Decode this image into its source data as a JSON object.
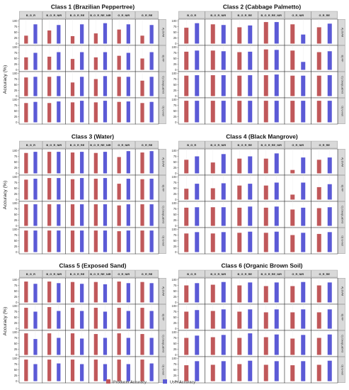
{
  "legend": [
    {
      "label": "Producer Accuracy",
      "color": "#c0585a"
    },
    {
      "label": "User Accuracy",
      "color": "#5b5ad6"
    }
  ],
  "chart_data": [
    {
      "type": "bar",
      "title": "Class 1 (Brazilian Peppertree)",
      "ylabel": "Accuracy (%)",
      "ylim": [
        0,
        100
      ],
      "yticks": [
        "0",
        "25",
        "50",
        "75",
        "100"
      ],
      "columns": [
        "B_G_R",
        "B_G_R_NIR",
        "B_G_R_RE",
        "B_G_R_RE_NIR",
        "G_R_NIR",
        "G_R_RE"
      ],
      "rows": [
        "A) SVM",
        "B) RF",
        "C) DeepLabV3",
        "D) U-net"
      ],
      "series": [
        {
          "name": "Producer Accuracy",
          "values": [
            [
              35,
              58,
              33,
              45,
              62,
              35
            ],
            [
              55,
              58,
              48,
              55,
              62,
              50
            ],
            [
              82,
              85,
              60,
              75,
              85,
              68
            ],
            [
              85,
              85,
              88,
              88,
              90,
              85
            ]
          ]
        },
        {
          "name": "User Accuracy",
          "values": [
            [
              85,
              82,
              85,
              90,
              85,
              82
            ],
            [
              75,
              78,
              78,
              78,
              75,
              78
            ],
            [
              85,
              88,
              85,
              88,
              85,
              85
            ],
            [
              90,
              92,
              95,
              95,
              92,
              90
            ]
          ]
        }
      ]
    },
    {
      "type": "bar",
      "title": "Class 2 (Cabbage Palmetto)",
      "ylabel": "Accuracy (%)",
      "ylim": [
        0,
        100
      ],
      "yticks": [
        "0",
        "25",
        "50",
        "75",
        "100"
      ],
      "columns": [
        "B_G_R",
        "B_G_R_NIR",
        "B_G_R_RE",
        "B_G_R_RE_NIR",
        "G_R_NIR",
        "G_R_RE"
      ],
      "rows": [
        "A) SVM",
        "B) RF",
        "C) DeepLabV3",
        "D) U-net"
      ],
      "series": [
        {
          "name": "Producer Accuracy",
          "values": [
            [
              70,
              85,
              72,
              95,
              85,
              72
            ],
            [
              80,
              85,
              78,
              90,
              85,
              78
            ],
            [
              90,
              92,
              90,
              92,
              90,
              90
            ],
            [
              95,
              95,
              95,
              95,
              95,
              95
            ]
          ]
        },
        {
          "name": "User Accuracy",
          "values": [
            [
              90,
              82,
              80,
              95,
              40,
              88
            ],
            [
              85,
              82,
              80,
              88,
              35,
              82
            ],
            [
              92,
              92,
              92,
              95,
              90,
              92
            ],
            [
              95,
              95,
              95,
              95,
              95,
              95
            ]
          ]
        }
      ]
    },
    {
      "type": "bar",
      "title": "Class 3 (Water)",
      "ylabel": "Accuracy (%)",
      "ylim": [
        0,
        100
      ],
      "yticks": [
        "0",
        "25",
        "50",
        "75",
        "100"
      ],
      "columns": [
        "B_G_R",
        "B_G_R_NIR",
        "B_G_R_RE",
        "B_G_R_RE_NIR",
        "G_R_NIR",
        "G_R_RE"
      ],
      "rows": [
        "A) SVM",
        "B) RF",
        "C) DeepLabV3",
        "D) U-net"
      ],
      "series": [
        {
          "name": "Producer Accuracy",
          "values": [
            [
              90,
              95,
              92,
              90,
              72,
              92
            ],
            [
              88,
              95,
              90,
              92,
              70,
              90
            ],
            [
              95,
              95,
              95,
              95,
              90,
              95
            ],
            [
              95,
              95,
              95,
              95,
              92,
              95
            ]
          ]
        },
        {
          "name": "User Accuracy",
          "values": [
            [
              95,
              95,
              95,
              95,
              98,
              98
            ],
            [
              92,
              95,
              95,
              95,
              92,
              92
            ],
            [
              95,
              95,
              95,
              95,
              95,
              95
            ],
            [
              95,
              95,
              95,
              95,
              95,
              95
            ]
          ]
        }
      ]
    },
    {
      "type": "bar",
      "title": "Class 4 (Black Mangrove)",
      "ylabel": "Accuracy (%)",
      "ylim": [
        0,
        100
      ],
      "yticks": [
        "0",
        "25",
        "50",
        "75",
        "100"
      ],
      "columns": [
        "B_G_R",
        "B_G_R_NIR",
        "B_G_R_RE",
        "B_G_R_RE_NIR",
        "G_R_NIR",
        "G_R_RE"
      ],
      "rows": [
        "A) SVM",
        "B) RF",
        "C) DeepLabV3",
        "D) U-net"
      ],
      "series": [
        {
          "name": "Producer Accuracy",
          "values": [
            [
              60,
              48,
              65,
              65,
              15,
              60
            ],
            [
              48,
              50,
              62,
              62,
              22,
              55
            ],
            [
              80,
              82,
              80,
              80,
              72,
              78
            ],
            [
              82,
              82,
              85,
              85,
              75,
              80
            ]
          ]
        },
        {
          "name": "User Accuracy",
          "values": [
            [
              75,
              85,
              75,
              88,
              70,
              70
            ],
            [
              70,
              72,
              70,
              75,
              75,
              68
            ],
            [
              82,
              82,
              85,
              85,
              80,
              82
            ],
            [
              88,
              88,
              90,
              90,
              85,
              88
            ]
          ]
        }
      ]
    },
    {
      "type": "bar",
      "title": "Class 5 (Exposed Sand)",
      "ylabel": "Accuracy (%)",
      "ylim": [
        0,
        100
      ],
      "yticks": [
        "0",
        "25",
        "50",
        "75",
        "100"
      ],
      "columns": [
        "B_G_R",
        "B_G_R_NIR",
        "B_G_R_RE",
        "B_G_R_RE_NIR",
        "G_R_NIR",
        "G_R_RE"
      ],
      "rows": [
        "A) SVM",
        "B) RF",
        "C) DeepLabV3",
        "D) U-net"
      ],
      "series": [
        {
          "name": "Producer Accuracy",
          "values": [
            [
              92,
              92,
              90,
              90,
              92,
              90
            ],
            [
              92,
              95,
              92,
              92,
              92,
              92
            ],
            [
              95,
              95,
              95,
              92,
              95,
              92
            ],
            [
              95,
              95,
              95,
              95,
              95,
              95
            ]
          ]
        },
        {
          "name": "User Accuracy",
          "values": [
            [
              82,
              85,
              82,
              80,
              85,
              85
            ],
            [
              75,
              78,
              78,
              75,
              78,
              78
            ],
            [
              70,
              75,
              72,
              75,
              75,
              75
            ],
            [
              75,
              78,
              75,
              75,
              75,
              78
            ]
          ]
        }
      ]
    },
    {
      "type": "bar",
      "title": "Class 6 (Organic Brown Soil)",
      "ylabel": "Accuracy (%)",
      "ylim": [
        0,
        100
      ],
      "yticks": [
        "0",
        "25",
        "50",
        "75",
        "100"
      ],
      "columns": [
        "B_G_R",
        "B_G_R_NIR",
        "B_G_R_RE",
        "B_G_R_RE_NIR",
        "G_R_NIR",
        "G_R_RE"
      ],
      "rows": [
        "A) SVM",
        "B) RF",
        "C) DeepLabV3",
        "D) U-net"
      ],
      "series": [
        {
          "name": "Producer Accuracy",
          "values": [
            [
              75,
              78,
              75,
              72,
              72,
              75
            ],
            [
              75,
              78,
              75,
              72,
              72,
              72
            ],
            [
              75,
              78,
              75,
              78,
              72,
              75
            ],
            [
              70,
              72,
              75,
              72,
              70,
              72
            ]
          ]
        },
        {
          "name": "User Accuracy",
          "values": [
            [
              85,
              90,
              88,
              88,
              90,
              88
            ],
            [
              82,
              85,
              85,
              85,
              85,
              85
            ],
            [
              85,
              88,
              95,
              90,
              88,
              90
            ],
            [
              88,
              88,
              90,
              88,
              88,
              90
            ]
          ]
        }
      ]
    }
  ]
}
